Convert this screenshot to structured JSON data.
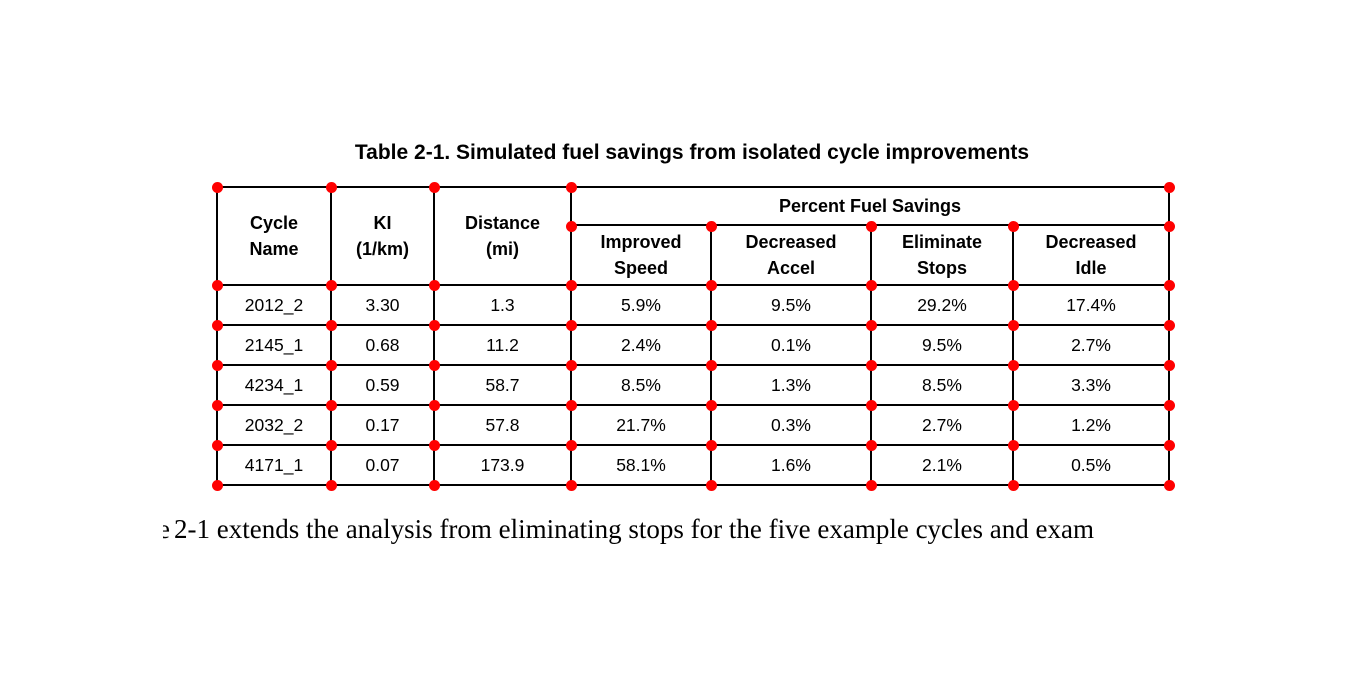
{
  "title": "Table 2-1. Simulated fuel savings from isolated cycle improvements",
  "table": {
    "columns": [
      {
        "line1": "Cycle",
        "line2": "Name"
      },
      {
        "line1": "KI",
        "line2": "(1/km)"
      },
      {
        "line1": "Distance",
        "line2": "(mi)"
      }
    ],
    "group_header": "Percent Fuel Savings",
    "sub_columns": [
      {
        "line1": "Improved",
        "line2": "Speed"
      },
      {
        "line1": "Decreased",
        "line2": "Accel"
      },
      {
        "line1": "Eliminate",
        "line2": "Stops"
      },
      {
        "line1": "Decreased",
        "line2": "Idle"
      }
    ],
    "rows": [
      [
        "2012_2",
        "3.30",
        "1.3",
        "5.9%",
        "9.5%",
        "29.2%",
        "17.4%"
      ],
      [
        "2145_1",
        "0.68",
        "11.2",
        "2.4%",
        "0.1%",
        "9.5%",
        "2.7%"
      ],
      [
        "4234_1",
        "0.59",
        "58.7",
        "8.5%",
        "1.3%",
        "8.5%",
        "3.3%"
      ],
      [
        "2032_2",
        "0.17",
        "57.8",
        "21.7%",
        "0.3%",
        "2.7%",
        "1.2%"
      ],
      [
        "4171_1",
        "0.07",
        "173.9",
        "58.1%",
        "1.6%",
        "2.1%",
        "0.5%"
      ]
    ]
  },
  "body_text": "2-1 extends the analysis from eliminating stops for the five example cycles and exam",
  "body_text_clipped_prefix": "e",
  "marker_color": "#ff0000",
  "border_color": "#000000"
}
